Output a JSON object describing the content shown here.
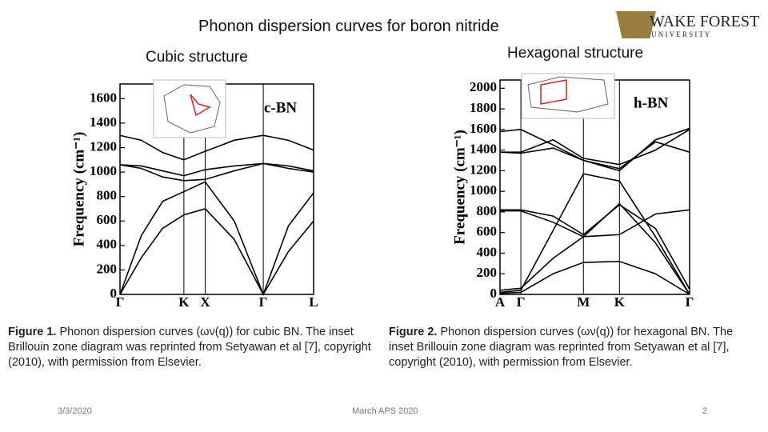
{
  "title": "Phonon dispersion curves for boron nitride",
  "logo": {
    "name": "WAKE FOREST",
    "sub": "U N I V E R S I T Y"
  },
  "chart_data": [
    {
      "type": "line",
      "heading": "Cubic structure",
      "label": "c-BN",
      "ylabel": "Frequency (cm⁻¹)",
      "x": [
        0,
        0.11,
        0.22,
        0.33,
        0.44,
        0.59,
        0.74,
        0.87,
        1
      ],
      "xlim": [
        0,
        1
      ],
      "xticks": [
        {
          "value": 0,
          "label": "Γ"
        },
        {
          "value": 0.33,
          "label": "K"
        },
        {
          "value": 0.44,
          "label": "X"
        },
        {
          "value": 0.74,
          "label": "Γ"
        },
        {
          "value": 1,
          "label": "L"
        }
      ],
      "ylim": [
        0,
        1720
      ],
      "yticks": [
        0,
        200,
        400,
        600,
        800,
        1000,
        1200,
        1400,
        1600
      ],
      "series": [
        {
          "color": "#000000",
          "values": [
            1300,
            1260,
            1160,
            1100,
            1170,
            1260,
            1300,
            1260,
            1180
          ]
        },
        {
          "color": "#000000",
          "values": [
            1060,
            1050,
            1010,
            970,
            1020,
            1050,
            1070,
            1050,
            1010
          ]
        },
        {
          "color": "#000000",
          "values": [
            1060,
            1030,
            960,
            930,
            940,
            1010,
            1070,
            1030,
            1000
          ]
        },
        {
          "color": "#000000",
          "values": [
            0,
            480,
            760,
            840,
            920,
            600,
            0,
            560,
            830
          ]
        },
        {
          "color": "#000000",
          "values": [
            0,
            300,
            540,
            650,
            700,
            450,
            0,
            350,
            600
          ]
        }
      ]
    },
    {
      "type": "line",
      "heading": "Hexagonal structure",
      "label": "h-BN",
      "ylabel": "Frequency (cm⁻¹)",
      "x": [
        0,
        0.11,
        0.28,
        0.44,
        0.63,
        0.82,
        1
      ],
      "xlim": [
        0,
        1
      ],
      "xticks": [
        {
          "value": 0,
          "label": "A"
        },
        {
          "value": 0.11,
          "label": "Γ"
        },
        {
          "value": 0.44,
          "label": "M"
        },
        {
          "value": 0.63,
          "label": "K"
        },
        {
          "value": 1,
          "label": "Γ"
        }
      ],
      "ylim": [
        0,
        2080
      ],
      "yticks": [
        0,
        200,
        400,
        600,
        800,
        1000,
        1200,
        1400,
        1600,
        1800,
        2000
      ],
      "series": [
        {
          "color": "#000000",
          "values": [
            1580,
            1600,
            1450,
            1300,
            1200,
            1500,
            1610
          ]
        },
        {
          "color": "#000000",
          "values": [
            1380,
            1380,
            1500,
            1320,
            1260,
            1400,
            1600
          ]
        },
        {
          "color": "#000000",
          "values": [
            1380,
            1370,
            1420,
            1300,
            1220,
            1480,
            1380
          ]
        },
        {
          "color": "#000000",
          "values": [
            810,
            810,
            700,
            560,
            580,
            780,
            820
          ]
        },
        {
          "color": "#000000",
          "values": [
            820,
            820,
            760,
            580,
            870,
            640,
            50
          ]
        },
        {
          "color": "#000000",
          "values": [
            20,
            40,
            620,
            1170,
            1100,
            560,
            0
          ]
        },
        {
          "color": "#000000",
          "values": [
            40,
            60,
            350,
            560,
            880,
            500,
            0
          ]
        },
        {
          "color": "#000000",
          "values": [
            10,
            20,
            200,
            310,
            320,
            200,
            0
          ]
        }
      ]
    }
  ],
  "captions": [
    {
      "label": "Figure 1.",
      "text": "Phonon dispersion curves (ων(q)) for cubic BN. The inset Brillouin zone diagram was reprinted from Setyawan et al [7], copyright (2010), with permission from Elsevier."
    },
    {
      "label": "Figure 2.",
      "text": "Phonon dispersion curves (ων(q)) for hexagonal BN. The inset Brillouin zone diagram was reprinted from Setyawan et al [7], copyright (2010), with permission from Elsevier."
    }
  ],
  "footer": {
    "date": "3/3/2020",
    "event": "March APS 2020",
    "page": "2"
  }
}
